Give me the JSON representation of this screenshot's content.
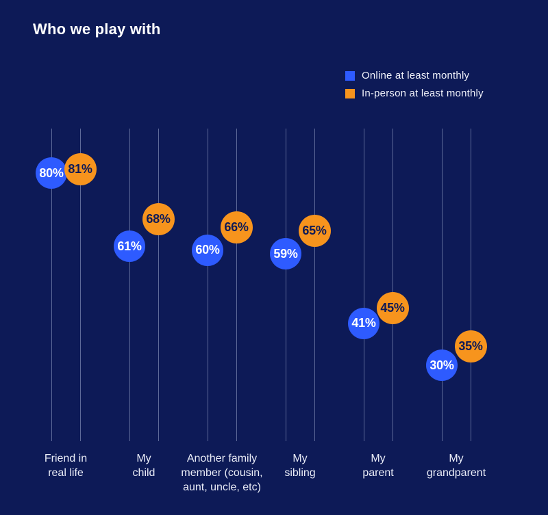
{
  "title": "Who we play with",
  "colors": {
    "background": "#0d1a57",
    "online": "#2e5bff",
    "in_person": "#f7941d",
    "online_value_text": "#ffffff",
    "in_person_value_text": "#0d1a57",
    "gridline": "rgba(208,218,245,0.42)",
    "category_label_text": "#e9ecf7",
    "title_text": "#ffffff"
  },
  "legend": {
    "items": [
      {
        "label": "Online at least monthly",
        "color": "#2e5bff"
      },
      {
        "label": "In-person at least monthly",
        "color": "#f7941d"
      }
    ],
    "position": "top-right"
  },
  "chart_data": {
    "type": "scatter",
    "title": "Who we play with",
    "categories": [
      "Friend in real life",
      "My child",
      "Another family member (cousin, aunt, uncle, etc)",
      "My sibling",
      "My parent",
      "My grandparent"
    ],
    "category_label_lines": [
      [
        "Friend in",
        "real life"
      ],
      [
        "My",
        "child"
      ],
      [
        "Another family",
        "member (cousin,",
        "aunt, uncle, etc)"
      ],
      [
        "My",
        "sibling"
      ],
      [
        "My",
        "parent"
      ],
      [
        "My",
        "grandparent"
      ]
    ],
    "series": [
      {
        "name": "Online at least monthly",
        "color": "#2e5bff",
        "values": [
          80,
          61,
          60,
          59,
          41,
          30
        ]
      },
      {
        "name": "In-person at least monthly",
        "color": "#f7941d",
        "values": [
          81,
          68,
          66,
          65,
          45,
          35
        ]
      }
    ],
    "unit": "%",
    "ylim": [
      0,
      100
    ],
    "grid": "vertical",
    "legend_position": "top-right"
  }
}
